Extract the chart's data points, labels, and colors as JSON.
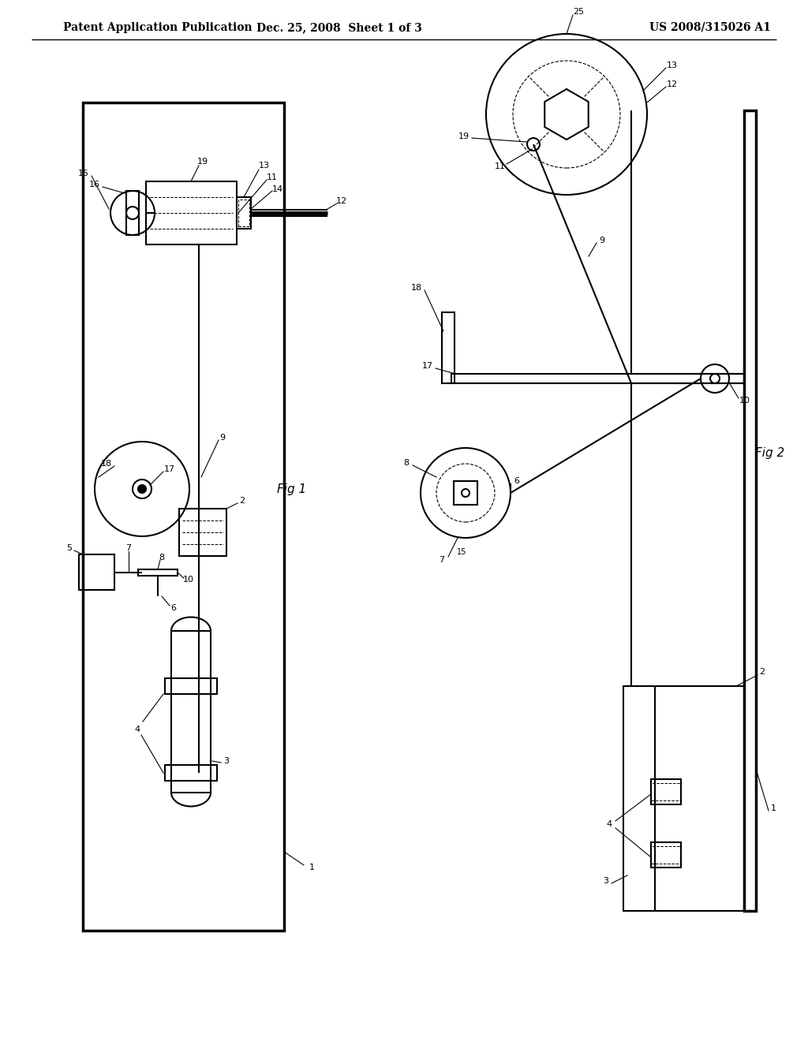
{
  "bg_color": "#ffffff",
  "line_color": "#000000",
  "header_left": "Patent Application Publication",
  "header_mid": "Dec. 25, 2008  Sheet 1 of 3",
  "header_right": "US 2008/315026 A1",
  "fig1_label": "Fig 1",
  "fig2_label": "Fig 2"
}
